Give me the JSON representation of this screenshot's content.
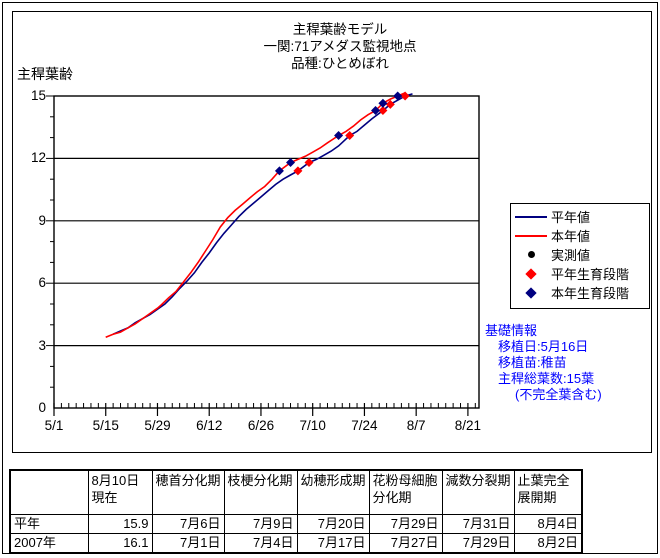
{
  "colors": {
    "normal_year": "#000080",
    "this_year": "#FF0000",
    "observed": "#000000",
    "info_text": "#0000FF",
    "axis": "#000000",
    "background": "#FFFFFF"
  },
  "chart_data": {
    "type": "line",
    "title": "主稈葉齢モデル",
    "subtitle": [
      "一関:71アメダス監視地点",
      "品種:ひとめぼれ"
    ],
    "xlabel": "",
    "ylabel": "主稈葉齢",
    "ylim": [
      0,
      15
    ],
    "grid": "horizontal-major-only",
    "legend_position": "right",
    "y_ticks": [
      0,
      3,
      6,
      9,
      12,
      15
    ],
    "x_tick_labels": [
      "5/1",
      "5/15",
      "5/29",
      "6/12",
      "6/26",
      "7/10",
      "7/24",
      "8/7",
      "8/21"
    ],
    "x_unit": "days from 5/1",
    "x_major_interval_days": 14,
    "x_minor_interval_days": 2,
    "x_range_days": [
      0,
      115
    ],
    "series": [
      {
        "name": "平年値",
        "type": "line",
        "color": "#000080",
        "points": [
          [
            16,
            3.55
          ],
          [
            18,
            3.7
          ],
          [
            20,
            3.85
          ],
          [
            22,
            4.1
          ],
          [
            24,
            4.3
          ],
          [
            26,
            4.5
          ],
          [
            28,
            4.75
          ],
          [
            30,
            5.0
          ],
          [
            32,
            5.35
          ],
          [
            34,
            5.75
          ],
          [
            36,
            6.1
          ],
          [
            38,
            6.5
          ],
          [
            40,
            7.0
          ],
          [
            42,
            7.45
          ],
          [
            44,
            7.95
          ],
          [
            46,
            8.4
          ],
          [
            48,
            8.8
          ],
          [
            50,
            9.2
          ],
          [
            52,
            9.55
          ],
          [
            54,
            9.85
          ],
          [
            56,
            10.15
          ],
          [
            58,
            10.45
          ],
          [
            60,
            10.75
          ],
          [
            62,
            11.0
          ],
          [
            64,
            11.2
          ],
          [
            66,
            11.4
          ],
          [
            69,
            11.8
          ],
          [
            71,
            11.95
          ],
          [
            73,
            12.15
          ],
          [
            75,
            12.35
          ],
          [
            77,
            12.6
          ],
          [
            80,
            13.1
          ],
          [
            82,
            13.3
          ],
          [
            84,
            13.6
          ],
          [
            86,
            13.9
          ],
          [
            89,
            14.3
          ],
          [
            91,
            14.6
          ],
          [
            93,
            14.8
          ],
          [
            95,
            15.0
          ],
          [
            97,
            15.1
          ]
        ]
      },
      {
        "name": "本年値",
        "type": "line",
        "color": "#FF0000",
        "points": [
          [
            14,
            3.4
          ],
          [
            16,
            3.55
          ],
          [
            18,
            3.65
          ],
          [
            20,
            3.85
          ],
          [
            22,
            4.05
          ],
          [
            24,
            4.3
          ],
          [
            26,
            4.55
          ],
          [
            28,
            4.8
          ],
          [
            29,
            4.95
          ],
          [
            31,
            5.3
          ],
          [
            33,
            5.6
          ],
          [
            35,
            6.05
          ],
          [
            37,
            6.5
          ],
          [
            39,
            7.0
          ],
          [
            41,
            7.55
          ],
          [
            43,
            8.1
          ],
          [
            45,
            8.7
          ],
          [
            47,
            9.15
          ],
          [
            49,
            9.5
          ],
          [
            51,
            9.8
          ],
          [
            53,
            10.1
          ],
          [
            55,
            10.4
          ],
          [
            57,
            10.65
          ],
          [
            59,
            11.0
          ],
          [
            61,
            11.4
          ],
          [
            64,
            11.8
          ],
          [
            66,
            11.95
          ],
          [
            68,
            12.1
          ],
          [
            70,
            12.3
          ],
          [
            72,
            12.5
          ],
          [
            74,
            12.75
          ],
          [
            77,
            13.1
          ],
          [
            79,
            13.3
          ],
          [
            81,
            13.55
          ],
          [
            83,
            13.85
          ],
          [
            85,
            14.1
          ],
          [
            87,
            14.3
          ],
          [
            89,
            14.65
          ],
          [
            91,
            14.85
          ],
          [
            93,
            15.0
          ],
          [
            95,
            15.15
          ]
        ]
      },
      {
        "name": "実測値",
        "type": "scatter",
        "marker": "circle",
        "color": "#000000",
        "points": []
      },
      {
        "name": "平年生育段階",
        "type": "scatter",
        "marker": "diamond",
        "color": "#FF0000",
        "points": [
          [
            66,
            11.4
          ],
          [
            69,
            11.8
          ],
          [
            80,
            13.1
          ],
          [
            89,
            14.3
          ],
          [
            91,
            14.6
          ],
          [
            95,
            15.0
          ]
        ],
        "dates": [
          "7月6日",
          "7月9日",
          "7月20日",
          "7月29日",
          "7月31日",
          "8月4日"
        ]
      },
      {
        "name": "本年生育段階",
        "type": "scatter",
        "marker": "diamond",
        "color": "#000080",
        "points": [
          [
            61,
            11.4
          ],
          [
            64,
            11.8
          ],
          [
            77,
            13.1
          ],
          [
            87,
            14.3
          ],
          [
            89,
            14.65
          ],
          [
            93,
            15.0
          ]
        ],
        "dates": [
          "7月1日",
          "7月4日",
          "7月17日",
          "7月27日",
          "7月29日",
          "8月2日"
        ]
      }
    ]
  },
  "info": {
    "heading": "基礎情報",
    "lines": [
      "移植日:5月16日",
      "移植苗:稚苗",
      "主稈総葉数:15葉"
    ],
    "note": "(不完全葉含む)"
  },
  "table": {
    "headers": [
      "",
      "8月10日現在",
      "穂首分化期",
      "枝梗分化期",
      "幼穂形成期",
      "花粉母細胞分化期",
      "減数分裂期",
      "止葉完全展開期"
    ],
    "rows": [
      {
        "label": "平年",
        "values": [
          "15.9",
          "7月6日",
          "7月9日",
          "7月20日",
          "7月29日",
          "7月31日",
          "8月4日"
        ]
      },
      {
        "label": "2007年",
        "values": [
          "16.1",
          "7月1日",
          "7月4日",
          "7月17日",
          "7月27日",
          "7月29日",
          "8月2日"
        ]
      }
    ]
  }
}
